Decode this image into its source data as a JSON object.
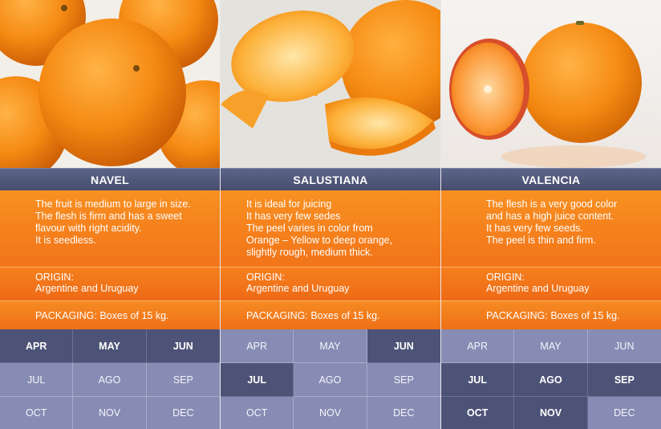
{
  "colors": {
    "header": "#4f5678",
    "orange": "#f47a1c",
    "month_active": "#4d5377",
    "month_inactive": "#878cb4"
  },
  "varieties": [
    {
      "name": "NAVEL",
      "photo_icon": "navel-oranges-photo",
      "description": [
        "The fruit is medium to large in size.",
        "The flesh is firm and has a sweet",
        "flavour with right acidity.",
        "It is seedless."
      ],
      "origin_label": "ORIGIN:",
      "origin_value": "Argentine and Uruguay",
      "packaging": "PACKAGING: Boxes of 15 kg.",
      "months": [
        {
          "label": "APR",
          "active": true
        },
        {
          "label": "MAY",
          "active": true
        },
        {
          "label": "JUN",
          "active": true
        },
        {
          "label": "JUL",
          "active": false
        },
        {
          "label": "AGO",
          "active": false
        },
        {
          "label": "SEP",
          "active": false
        },
        {
          "label": "OCT",
          "active": false
        },
        {
          "label": "NOV",
          "active": false
        },
        {
          "label": "DEC",
          "active": false
        }
      ]
    },
    {
      "name": "SALUSTIANA",
      "photo_icon": "salustiana-orange-photo",
      "description": [
        "It is ideal for juicing",
        "It has very few sedes",
        "The peel varies in color from",
        "Orange – Yellow to deep orange,",
        "slightly rough, medium thick."
      ],
      "origin_label": "ORIGIN:",
      "origin_value": "Argentine and Uruguay",
      "packaging": "PACKAGING: Boxes of 15 kg.",
      "months": [
        {
          "label": "APR",
          "active": false
        },
        {
          "label": "MAY",
          "active": false
        },
        {
          "label": "JUN",
          "active": true
        },
        {
          "label": "JUL",
          "active": true
        },
        {
          "label": "AGO",
          "active": false
        },
        {
          "label": "SEP",
          "active": false
        },
        {
          "label": "OCT",
          "active": false
        },
        {
          "label": "NOV",
          "active": false
        },
        {
          "label": "DEC",
          "active": false
        }
      ]
    },
    {
      "name": "VALENCIA",
      "photo_icon": "valencia-orange-photo",
      "description": [
        "The flesh is a very good color",
        "and has a high juice content.",
        "It has very few seeds.",
        "The peel is thin and firm."
      ],
      "origin_label": "ORIGIN:",
      "origin_value": "Argentine and Uruguay",
      "packaging": "PACKAGING: Boxes of 15 kg.",
      "months": [
        {
          "label": "APR",
          "active": false
        },
        {
          "label": "MAY",
          "active": false
        },
        {
          "label": "JUN",
          "active": false
        },
        {
          "label": "JUL",
          "active": true
        },
        {
          "label": "AGO",
          "active": true
        },
        {
          "label": "SEP",
          "active": true
        },
        {
          "label": "OCT",
          "active": true
        },
        {
          "label": "NOV",
          "active": true
        },
        {
          "label": "DEC",
          "active": false
        }
      ]
    }
  ]
}
